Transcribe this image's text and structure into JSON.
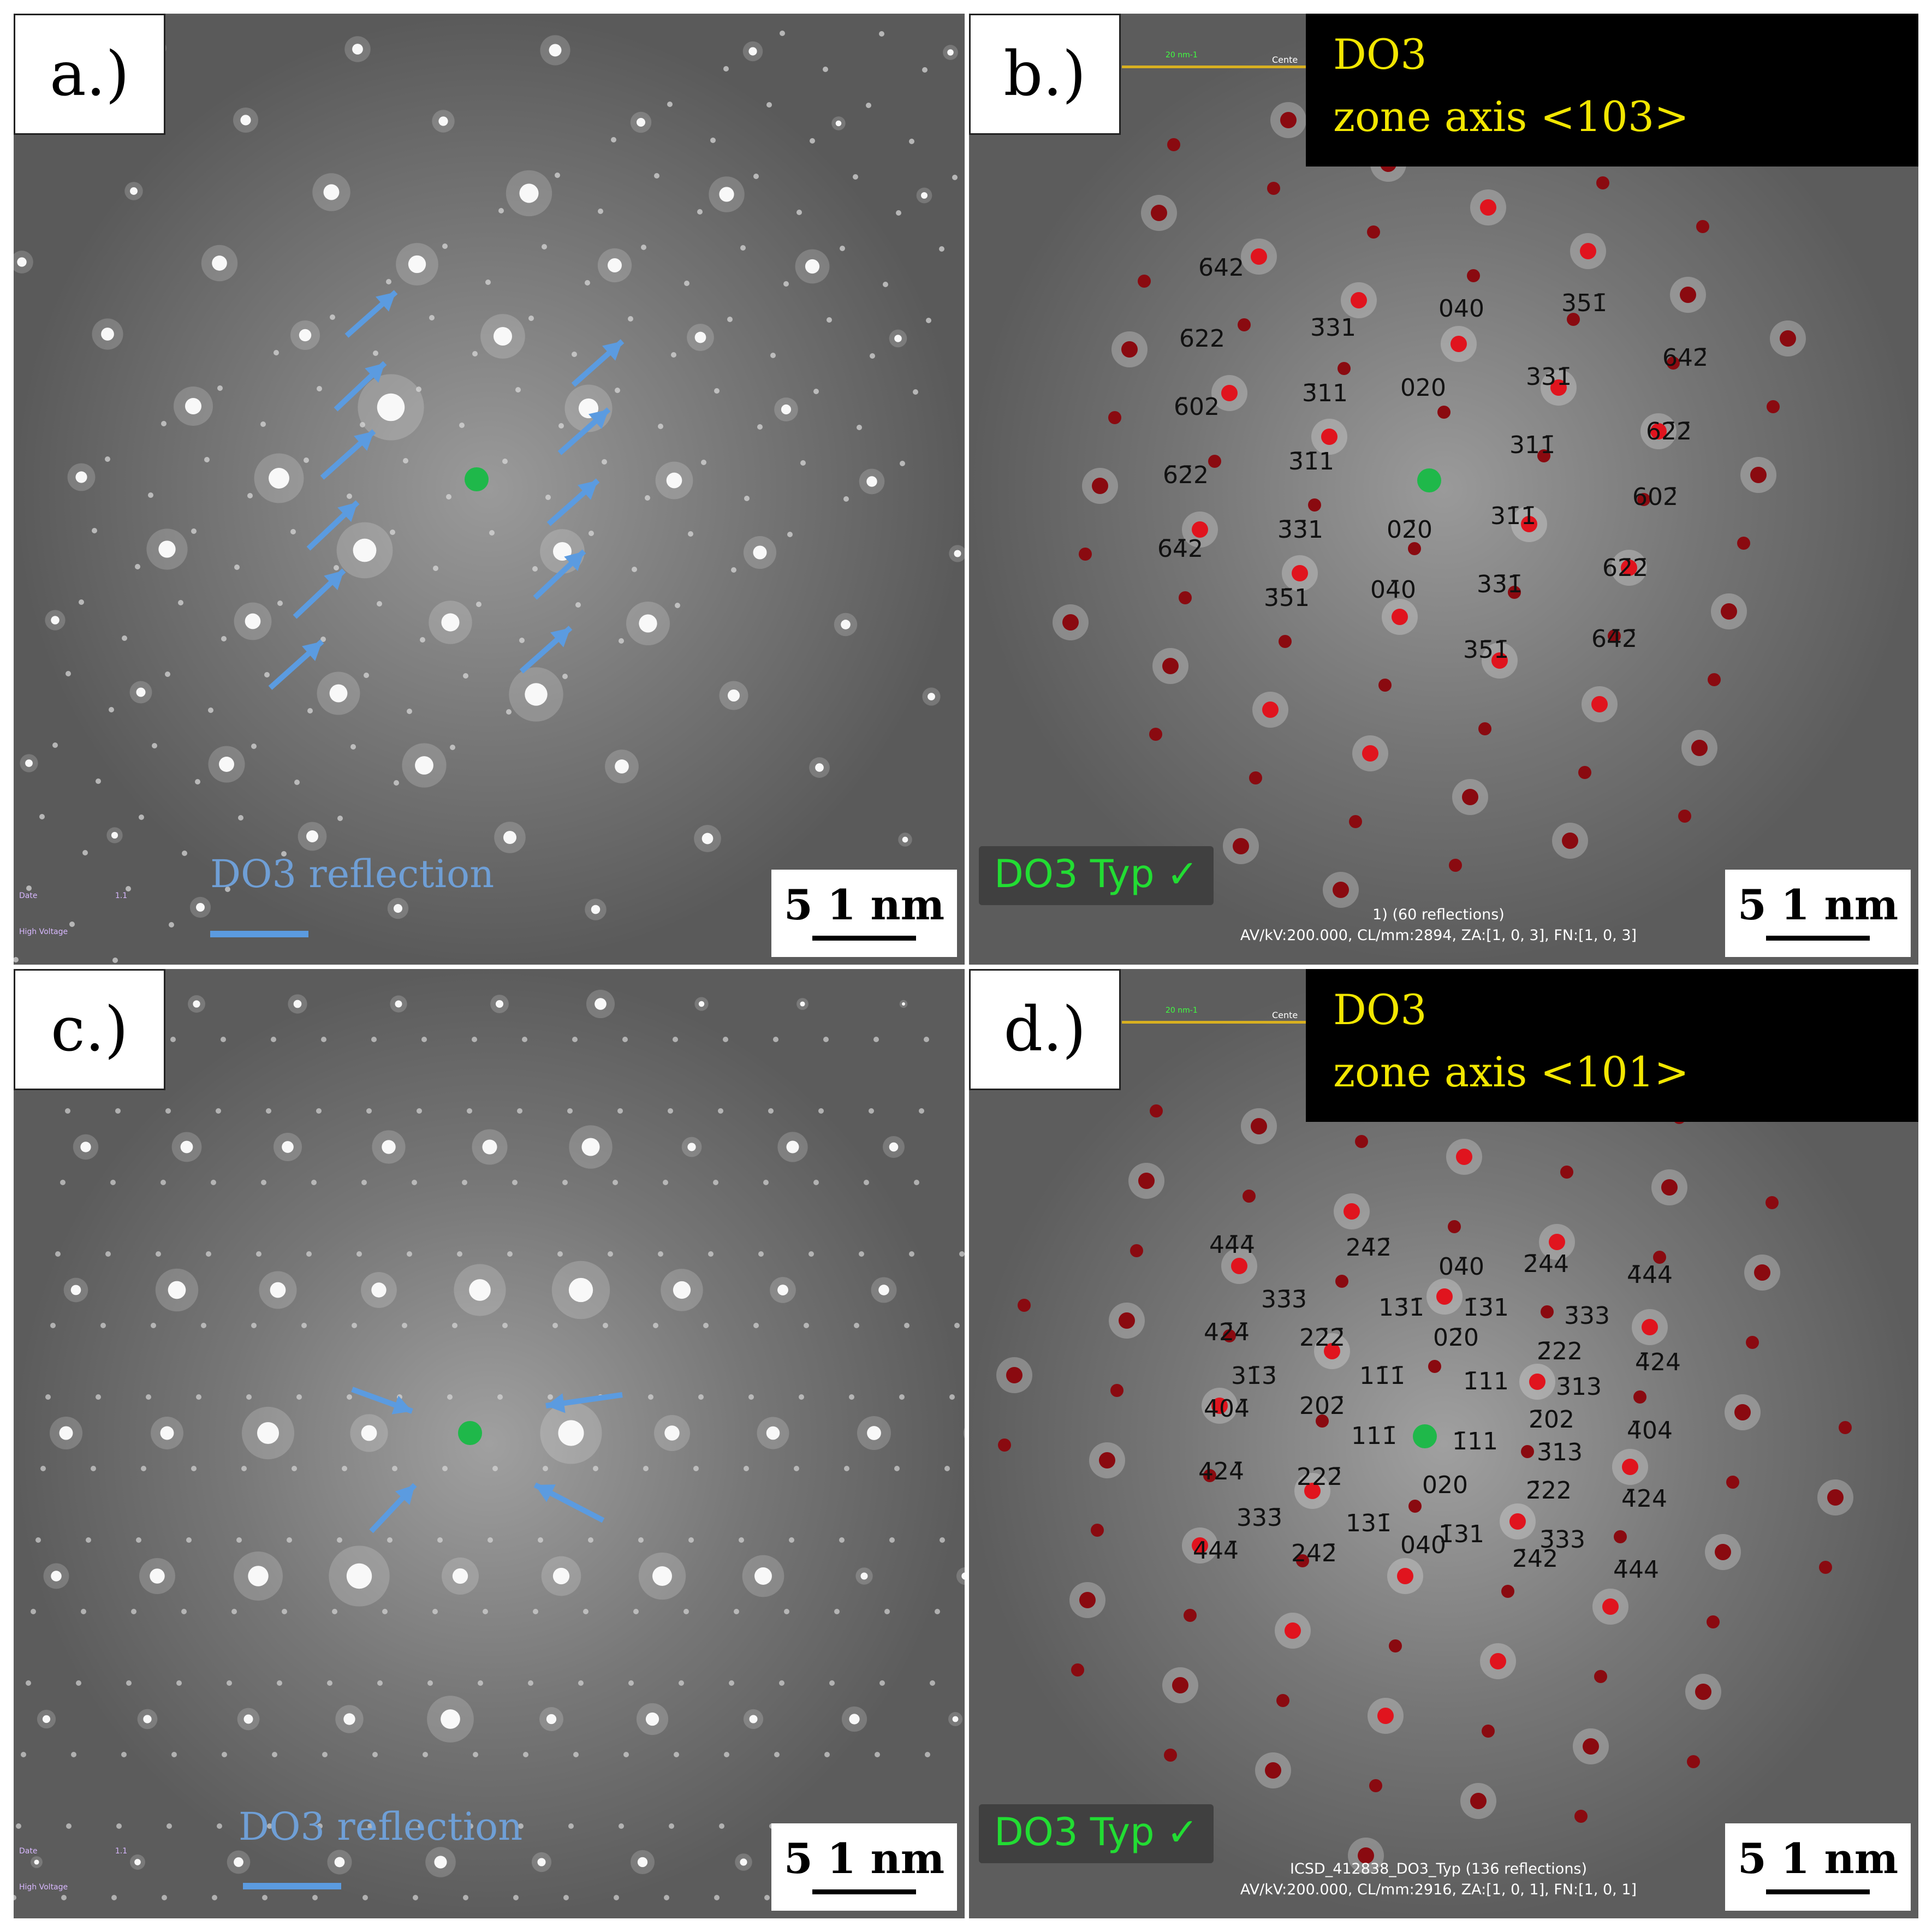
{
  "panels": {
    "a": {
      "label": "a.)",
      "scale": "5 1 nm",
      "legend": "DO3 reflection",
      "arrows": 11
    },
    "b": {
      "label": "b.)",
      "scale": "5 1 nm",
      "title1": "DO3",
      "title2": "zone axis <103>",
      "typ": "DO3 Typ ✓",
      "info1": "1)    (60 reflections)",
      "info2": "AV/kV:200.000, CL/mm:2894, ZA:[1, 0, 3], FN:[1, 0, 3]",
      "ruler": "20 nm-1",
      "center": "Cente",
      "indices": [
        {
          "t": "6̄42"
        },
        {
          "t": "3̄31"
        },
        {
          "t": "040"
        },
        {
          "t": "351̄"
        },
        {
          "t": "6̄22"
        },
        {
          "t": "642̄"
        },
        {
          "t": "331̄"
        },
        {
          "t": "3̄11"
        },
        {
          "t": "020"
        },
        {
          "t": "6̄02"
        },
        {
          "t": "62̄2̄"
        },
        {
          "t": "311̄"
        },
        {
          "t": "3̄1̄1"
        },
        {
          "t": "6̄2̄2"
        },
        {
          "t": "602̄"
        },
        {
          "t": "31̄1̄"
        },
        {
          "t": "3̄3̄1"
        },
        {
          "t": "02̄0"
        },
        {
          "t": "6̄4̄2"
        },
        {
          "t": "33̄1̄"
        },
        {
          "t": "62̄2̄"
        },
        {
          "t": "3̄5̄1"
        },
        {
          "t": "04̄0"
        },
        {
          "t": "35̄1̄"
        },
        {
          "t": "64̄2̄"
        }
      ]
    },
    "c": {
      "label": "c.)",
      "scale": "5 1 nm",
      "legend": "DO3 reflection",
      "arrows": 4
    },
    "d": {
      "label": "d.)",
      "scale": "5 1 nm",
      "title1": "DO3",
      "title2": "zone axis <101>",
      "typ": "DO3 Typ ✓",
      "info1": "ICSD_412838_DO3_Typ     (136 reflections)",
      "info2": "AV/kV:200.000, CL/mm:2916, ZA:[1, 0, 1], FN:[1, 0, 1]",
      "ruler": "20 nm-1",
      "center": "Cente",
      "indices": [
        {
          "t": "44̄4̄"
        },
        {
          "t": "24̄2̄"
        },
        {
          "t": "04̄0"
        },
        {
          "t": "2̄44"
        },
        {
          "t": "4̄44"
        },
        {
          "t": "33̄3̄"
        },
        {
          "t": "13̄1̄"
        },
        {
          "t": "1̄3̄1"
        },
        {
          "t": "3̄33"
        },
        {
          "t": "42̄4̄"
        },
        {
          "t": "22̄2̄"
        },
        {
          "t": "02̄0"
        },
        {
          "t": "2̄22"
        },
        {
          "t": "4̄24"
        },
        {
          "t": "31̄3̄"
        },
        {
          "t": "11̄1̄"
        },
        {
          "t": "1̄11"
        },
        {
          "t": "3̄13"
        },
        {
          "t": "404̄"
        },
        {
          "t": "202̄"
        },
        {
          "t": "2̄02"
        },
        {
          "t": "4̄04"
        },
        {
          "t": "111̄"
        },
        {
          "t": "1̄11"
        },
        {
          "t": "3̄13"
        },
        {
          "t": "424̄"
        },
        {
          "t": "222̄"
        },
        {
          "t": "020"
        },
        {
          "t": "2̄22"
        },
        {
          "t": "4̄24"
        },
        {
          "t": "333̄"
        },
        {
          "t": "131̄"
        },
        {
          "t": "1̄31"
        },
        {
          "t": "3̄33"
        },
        {
          "t": "444̄"
        },
        {
          "t": "242̄"
        },
        {
          "t": "040"
        },
        {
          "t": "2̄42"
        },
        {
          "t": "4̄44"
        }
      ]
    }
  },
  "colors": {
    "background": "#6a6a6a",
    "spot": "#ffffff",
    "center_dot": "#1fb84a",
    "sim_spot": "#e0141e",
    "sim_spot_dark": "#8a0a10",
    "arrow": "#5b9be0",
    "title_text": "#f2e600",
    "typ_text": "#22dd33"
  }
}
